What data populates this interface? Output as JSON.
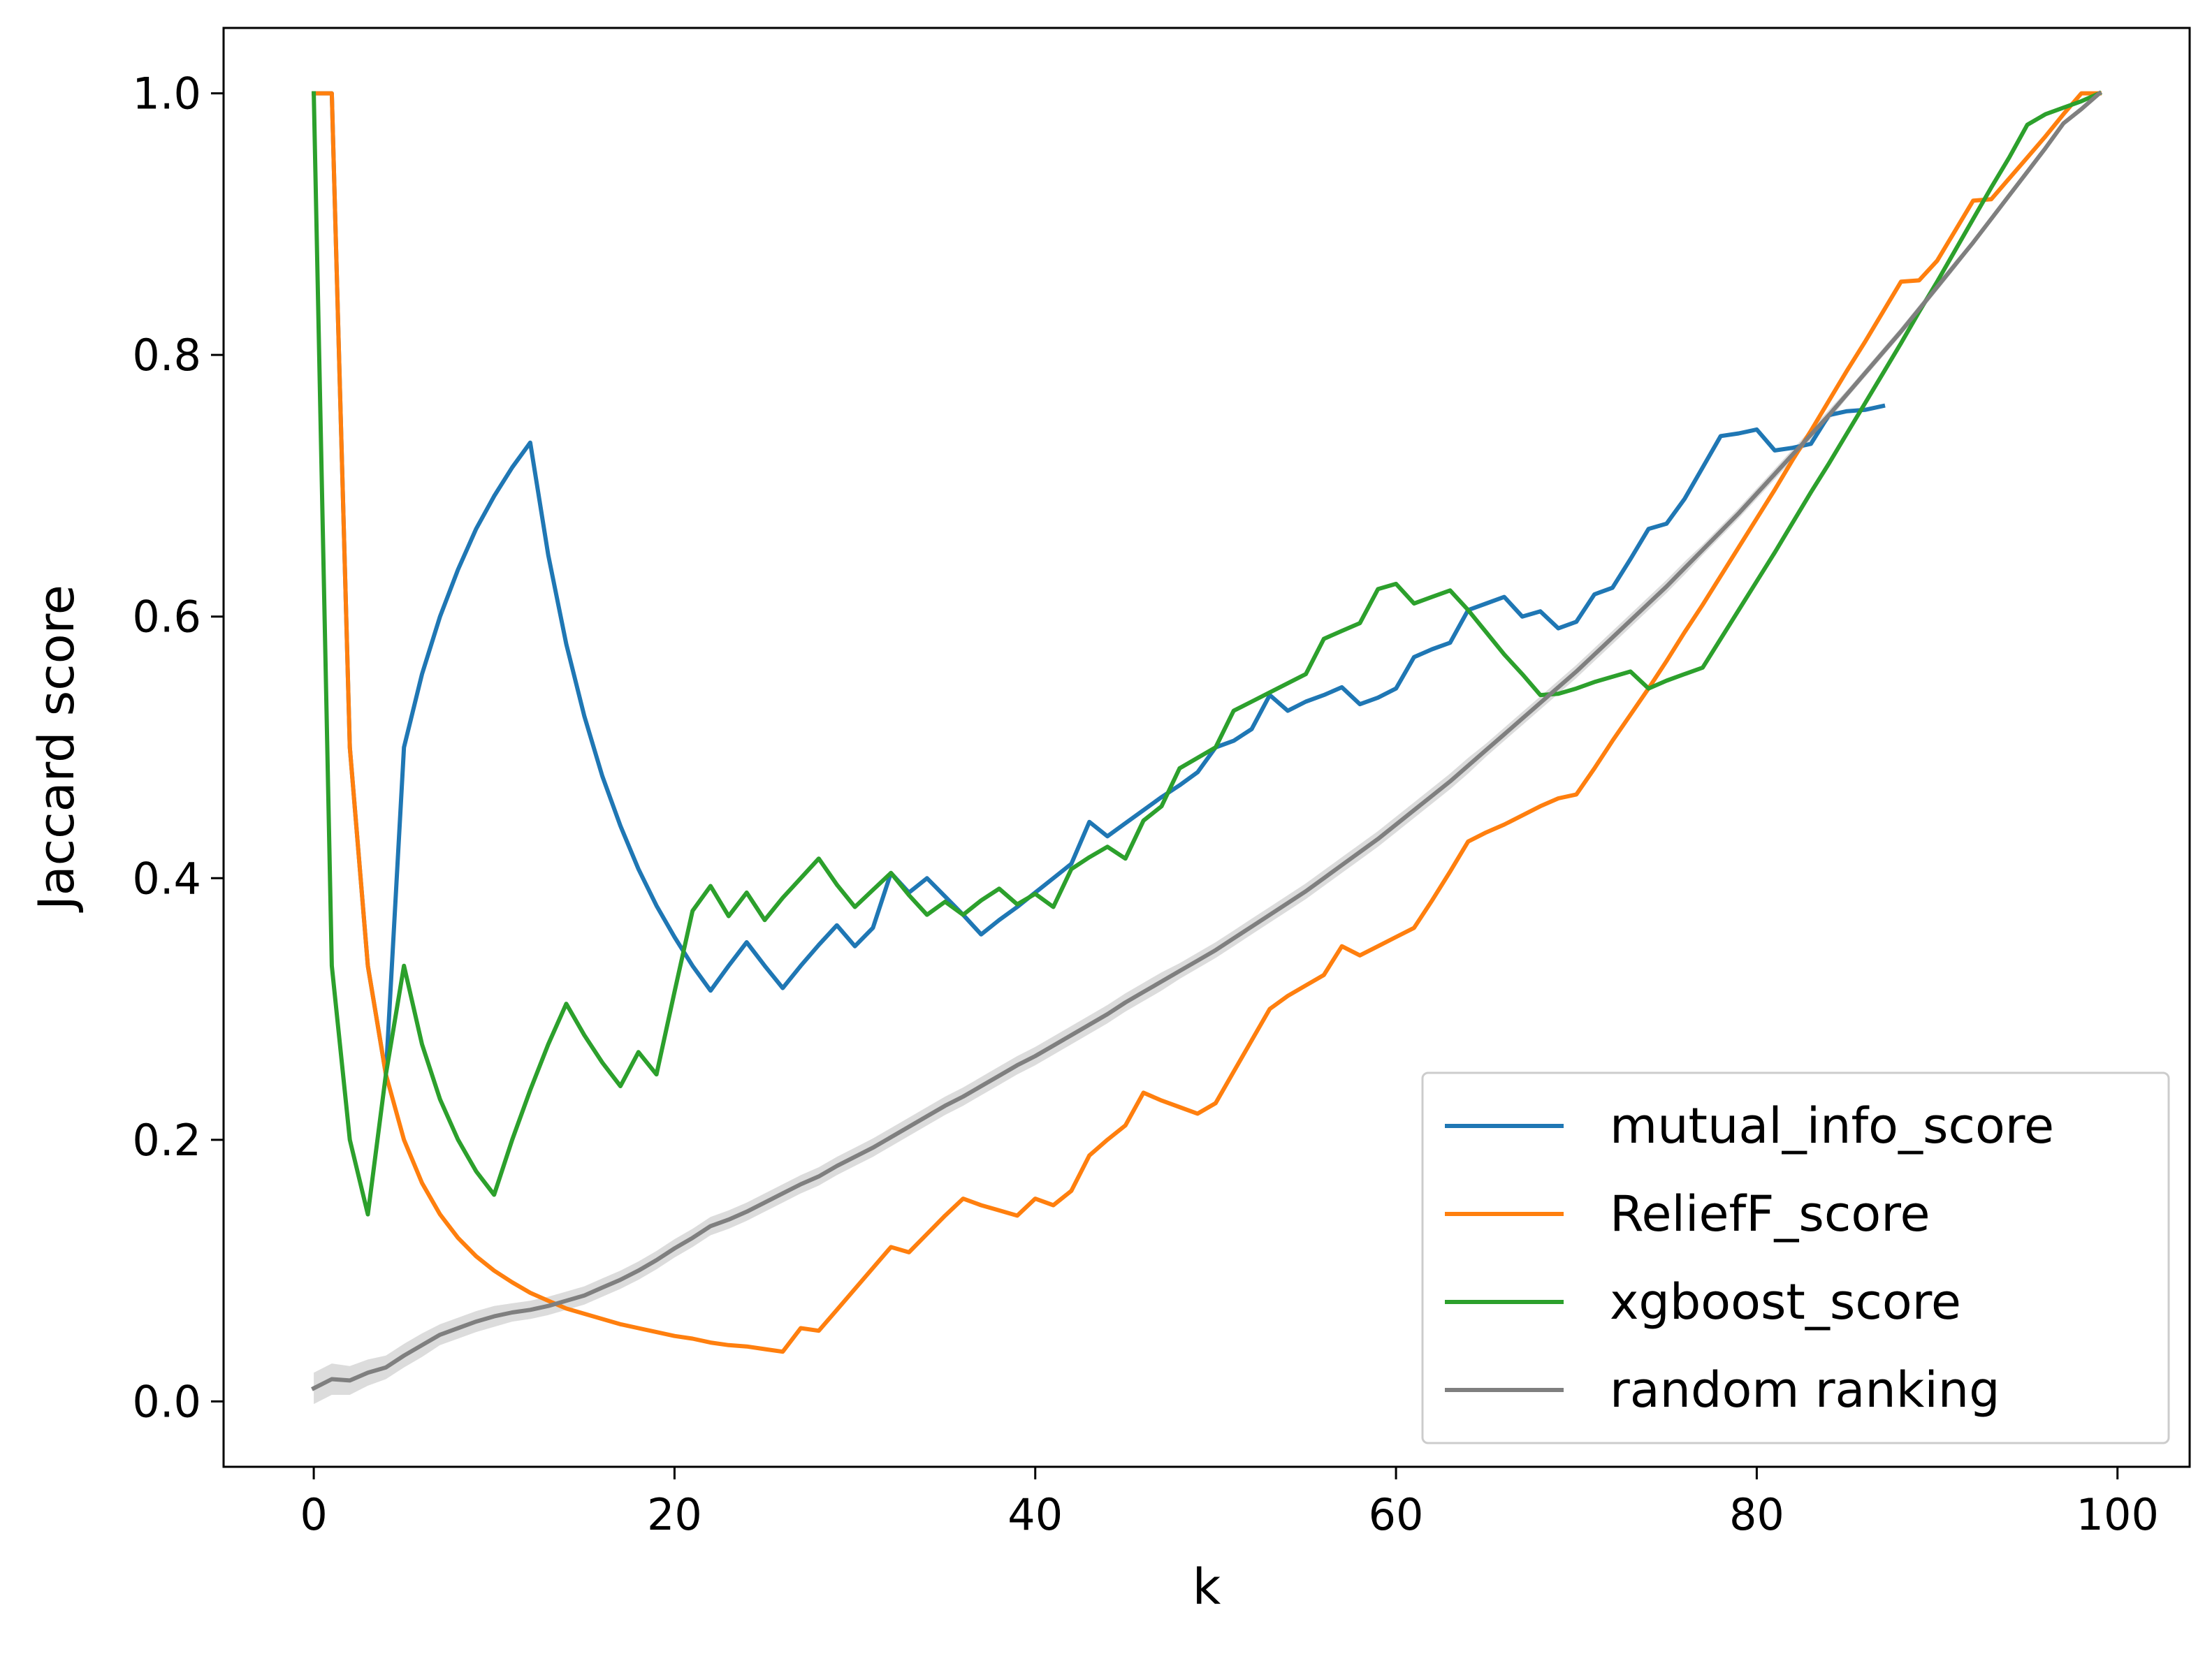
{
  "chart_data": {
    "type": "line",
    "title": "",
    "xlabel": "k",
    "ylabel": "Jaccard score",
    "xlim": [
      -5,
      104
    ],
    "ylim": [
      -0.05,
      1.05
    ],
    "xticks": [
      0,
      20,
      40,
      60,
      80,
      100
    ],
    "xtick_labels": [
      "0",
      "20",
      "40",
      "60",
      "80",
      "100"
    ],
    "yticks": [
      0.0,
      0.2,
      0.4,
      0.6,
      0.8,
      1.0
    ],
    "ytick_labels": [
      "0.0",
      "0.2",
      "0.4",
      "0.6",
      "0.8",
      "1.0"
    ],
    "grid": false,
    "legend_position": "lower right",
    "series": [
      {
        "name": "mutual_info_score",
        "color": "#1f77b4",
        "x": [
          0,
          1,
          2,
          3,
          4,
          5,
          6,
          7,
          8,
          9,
          10,
          11,
          12,
          13,
          14,
          15,
          16,
          17,
          18,
          19,
          20,
          21,
          22,
          23,
          24,
          25,
          26,
          27,
          28,
          29,
          30,
          31,
          32,
          33,
          34,
          35,
          36,
          37,
          38,
          39,
          40,
          41,
          42,
          43,
          44,
          45,
          46,
          47,
          48,
          49,
          50,
          51,
          52,
          53,
          54,
          55,
          56,
          57,
          58,
          59,
          60,
          61,
          62,
          63,
          64,
          65,
          66,
          67,
          68,
          69,
          70,
          71,
          72,
          73,
          74,
          75,
          76,
          77,
          78,
          79,
          80,
          81,
          82,
          83,
          84,
          85,
          86,
          87
        ],
        "y": [
          1.0,
          1.0,
          0.5,
          0.333,
          0.25,
          0.5,
          0.556,
          0.6,
          0.636,
          0.667,
          0.692,
          0.714,
          0.733,
          0.647,
          0.579,
          0.524,
          0.478,
          0.44,
          0.407,
          0.379,
          0.355,
          0.333,
          0.314,
          0.333,
          0.351,
          0.333,
          0.316,
          0.333,
          0.349,
          0.364,
          0.348,
          0.362,
          0.404,
          0.389,
          0.4,
          0.386,
          0.372,
          0.357,
          0.368,
          0.378,
          0.389,
          0.4,
          0.411,
          0.443,
          0.432,
          0.442,
          0.452,
          0.462,
          0.471,
          0.481,
          0.5,
          0.505,
          0.514,
          0.54,
          0.528,
          0.535,
          0.54,
          0.546,
          0.533,
          0.538,
          0.545,
          0.569,
          0.575,
          0.58,
          0.605,
          0.61,
          0.615,
          0.6,
          0.604,
          0.591,
          0.596,
          0.617,
          0.622,
          0.644,
          0.667,
          0.671,
          0.69,
          0.714,
          0.738,
          0.74,
          0.743,
          0.727,
          0.729,
          0.732,
          0.754,
          0.757,
          0.758,
          0.761
        ]
      },
      {
        "name": "ReliefF_score",
        "color": "#ff7f0e",
        "x": [
          0,
          1,
          2,
          3,
          4,
          5,
          6,
          7,
          8,
          9,
          10,
          11,
          12,
          13,
          14,
          15,
          16,
          17,
          18,
          19,
          20,
          21,
          22,
          23,
          24,
          25,
          26,
          27,
          28,
          29,
          30,
          31,
          32,
          33,
          34,
          35,
          36,
          37,
          38,
          39,
          40,
          41,
          42,
          43,
          44,
          45,
          46,
          47,
          48,
          49,
          50,
          51,
          52,
          53,
          54,
          55,
          56,
          57,
          58,
          59,
          60,
          61,
          62,
          63,
          64,
          65,
          66,
          67,
          68,
          69,
          70,
          71,
          72,
          73,
          74,
          75,
          76,
          77,
          78,
          79,
          80,
          81,
          82,
          83,
          84,
          85,
          86,
          87,
          88,
          89,
          90,
          91,
          92,
          93,
          94,
          95,
          96,
          97,
          98,
          99
        ],
        "y": [
          1.0,
          1.0,
          0.5,
          0.333,
          0.25,
          0.2,
          0.167,
          0.143,
          0.125,
          0.111,
          0.1,
          0.091,
          0.083,
          0.077,
          0.071,
          0.067,
          0.063,
          0.059,
          0.056,
          0.053,
          0.05,
          0.048,
          0.045,
          0.043,
          0.042,
          0.04,
          0.038,
          0.056,
          0.054,
          0.07,
          0.086,
          0.102,
          0.118,
          0.114,
          0.128,
          0.142,
          0.155,
          0.15,
          0.146,
          0.142,
          0.155,
          0.15,
          0.161,
          0.188,
          0.2,
          0.211,
          0.236,
          0.23,
          0.225,
          0.22,
          0.228,
          0.252,
          0.276,
          0.3,
          0.31,
          0.318,
          0.326,
          0.348,
          0.341,
          0.348,
          0.355,
          0.362,
          0.383,
          0.405,
          0.428,
          0.435,
          0.441,
          0.448,
          0.455,
          0.461,
          0.464,
          0.484,
          0.505,
          0.525,
          0.545,
          0.566,
          0.588,
          0.609,
          0.631,
          0.653,
          0.675,
          0.697,
          0.72,
          0.742,
          0.765,
          0.788,
          0.81,
          0.833,
          0.856,
          0.857,
          0.872,
          0.895,
          0.918,
          0.919,
          0.935,
          0.951,
          0.967,
          0.984,
          1.0,
          1.0
        ]
      },
      {
        "name": "xgboost_score",
        "color": "#2ca02c",
        "x": [
          0,
          1,
          2,
          3,
          4,
          5,
          6,
          7,
          8,
          9,
          10,
          11,
          12,
          13,
          14,
          15,
          16,
          17,
          18,
          19,
          20,
          21,
          22,
          23,
          24,
          25,
          26,
          27,
          28,
          29,
          30,
          31,
          32,
          33,
          34,
          35,
          36,
          37,
          38,
          39,
          40,
          41,
          42,
          43,
          44,
          45,
          46,
          47,
          48,
          49,
          50,
          51,
          52,
          53,
          54,
          55,
          56,
          57,
          58,
          59,
          60,
          61,
          62,
          63,
          64,
          65,
          66,
          67,
          68,
          69,
          70,
          71,
          72,
          73,
          74,
          75,
          76,
          77,
          78,
          79,
          80,
          81,
          82,
          83,
          84,
          85,
          86,
          87,
          88,
          89,
          90,
          91,
          92,
          93,
          94,
          95,
          96,
          97,
          98,
          99
        ],
        "y": [
          1.0,
          0.333,
          0.2,
          0.143,
          0.25,
          0.333,
          0.273,
          0.231,
          0.2,
          0.176,
          0.158,
          0.2,
          0.238,
          0.273,
          0.304,
          0.28,
          0.259,
          0.241,
          0.267,
          0.25,
          0.313,
          0.375,
          0.394,
          0.371,
          0.389,
          0.368,
          0.385,
          0.4,
          0.415,
          0.395,
          0.378,
          0.391,
          0.404,
          0.387,
          0.372,
          0.382,
          0.372,
          0.383,
          0.392,
          0.38,
          0.388,
          0.378,
          0.407,
          0.416,
          0.424,
          0.415,
          0.444,
          0.455,
          0.484,
          0.492,
          0.5,
          0.528,
          0.535,
          0.542,
          0.549,
          0.556,
          0.583,
          0.589,
          0.595,
          0.621,
          0.625,
          0.61,
          0.615,
          0.62,
          0.605,
          0.588,
          0.571,
          0.556,
          0.54,
          0.541,
          0.545,
          0.55,
          0.554,
          0.558,
          0.545,
          0.551,
          0.556,
          0.561,
          0.583,
          0.605,
          0.627,
          0.649,
          0.672,
          0.695,
          0.717,
          0.74,
          0.763,
          0.786,
          0.809,
          0.833,
          0.856,
          0.88,
          0.904,
          0.928,
          0.951,
          0.976,
          0.984,
          0.989,
          0.994,
          1.0
        ]
      },
      {
        "name": "random ranking",
        "color": "#7f7f7f",
        "band_color": "#d3d3d3",
        "x": [
          0,
          1,
          2,
          3,
          4,
          5,
          6,
          7,
          8,
          9,
          10,
          11,
          12,
          13,
          14,
          15,
          16,
          17,
          18,
          19,
          20,
          21,
          22,
          23,
          24,
          25,
          26,
          27,
          28,
          29,
          30,
          31,
          32,
          33,
          34,
          35,
          36,
          37,
          38,
          39,
          40,
          41,
          42,
          43,
          44,
          45,
          46,
          47,
          48,
          49,
          50,
          51,
          52,
          53,
          54,
          55,
          56,
          57,
          58,
          59,
          60,
          61,
          62,
          63,
          64,
          65,
          66,
          67,
          68,
          69,
          70,
          71,
          72,
          73,
          74,
          75,
          76,
          77,
          78,
          79,
          80,
          81,
          82,
          83,
          84,
          85,
          86,
          87,
          88,
          89,
          90,
          91,
          92,
          93,
          94,
          95,
          96,
          97,
          98,
          99
        ],
        "y": [
          0.01,
          0.017,
          0.016,
          0.022,
          0.026,
          0.035,
          0.043,
          0.051,
          0.056,
          0.061,
          0.065,
          0.068,
          0.07,
          0.073,
          0.077,
          0.081,
          0.087,
          0.093,
          0.1,
          0.108,
          0.117,
          0.125,
          0.134,
          0.139,
          0.145,
          0.152,
          0.159,
          0.166,
          0.172,
          0.18,
          0.187,
          0.194,
          0.202,
          0.21,
          0.218,
          0.226,
          0.233,
          0.241,
          0.249,
          0.257,
          0.264,
          0.272,
          0.28,
          0.288,
          0.296,
          0.305,
          0.313,
          0.321,
          0.329,
          0.337,
          0.345,
          0.354,
          0.363,
          0.372,
          0.381,
          0.39,
          0.4,
          0.41,
          0.42,
          0.43,
          0.441,
          0.452,
          0.463,
          0.474,
          0.486,
          0.498,
          0.51,
          0.522,
          0.534,
          0.546,
          0.558,
          0.571,
          0.584,
          0.597,
          0.61,
          0.623,
          0.637,
          0.651,
          0.665,
          0.679,
          0.694,
          0.709,
          0.724,
          0.739,
          0.754,
          0.77,
          0.786,
          0.802,
          0.818,
          0.835,
          0.852,
          0.869,
          0.886,
          0.904,
          0.922,
          0.94,
          0.958,
          0.977,
          0.988,
          1.0
        ],
        "band_halfwidth": [
          0.012,
          0.012,
          0.011,
          0.01,
          0.009,
          0.009,
          0.009,
          0.008,
          0.008,
          0.008,
          0.008,
          0.007,
          0.007,
          0.007,
          0.007,
          0.007,
          0.007,
          0.007,
          0.007,
          0.007,
          0.007,
          0.007,
          0.007,
          0.007,
          0.007,
          0.007,
          0.007,
          0.007,
          0.007,
          0.007,
          0.007,
          0.007,
          0.007,
          0.007,
          0.007,
          0.007,
          0.007,
          0.007,
          0.007,
          0.007,
          0.007,
          0.007,
          0.007,
          0.007,
          0.007,
          0.007,
          0.007,
          0.007,
          0.006,
          0.006,
          0.006,
          0.006,
          0.006,
          0.006,
          0.006,
          0.006,
          0.006,
          0.006,
          0.006,
          0.006,
          0.006,
          0.006,
          0.006,
          0.006,
          0.006,
          0.005,
          0.005,
          0.005,
          0.005,
          0.005,
          0.005,
          0.005,
          0.005,
          0.005,
          0.005,
          0.005,
          0.005,
          0.004,
          0.004,
          0.004,
          0.004,
          0.004,
          0.004,
          0.004,
          0.004,
          0.003,
          0.003,
          0.003,
          0.003,
          0.003,
          0.003,
          0.003,
          0.002,
          0.002,
          0.002,
          0.002,
          0.002,
          0.001,
          0.001,
          0.0
        ]
      }
    ]
  }
}
